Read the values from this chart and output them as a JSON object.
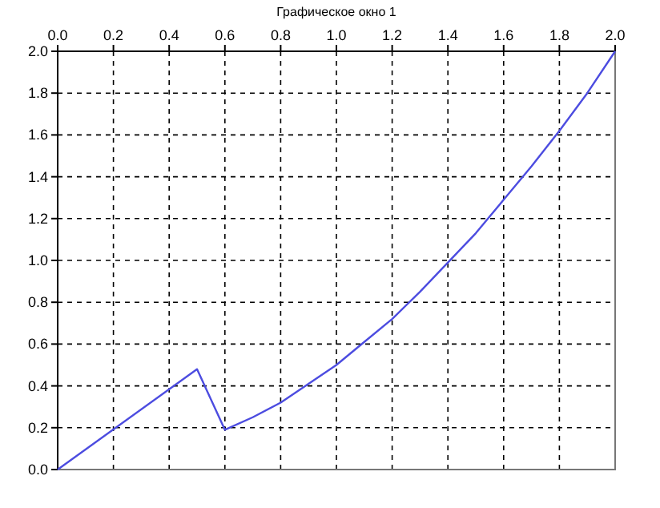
{
  "chart_data": {
    "type": "line",
    "title": "Графическое окно 1",
    "x": [
      0,
      0.5,
      0.6,
      0.7,
      0.8,
      0.9,
      1.0,
      1.1,
      1.2,
      1.3,
      1.4,
      1.5,
      1.6,
      1.7,
      1.8,
      1.9,
      2.0
    ],
    "series": [
      {
        "color": "#4c4ce0",
        "values": [
          0,
          0.48,
          0.19,
          0.25,
          0.32,
          0.41,
          0.5,
          0.61,
          0.72,
          0.85,
          0.99,
          1.13,
          1.29,
          1.45,
          1.62,
          1.8,
          2.0
        ]
      }
    ],
    "xlim": [
      0,
      2
    ],
    "ylim": [
      0,
      2
    ],
    "xticks": [
      {
        "value": 0,
        "label": "0.0"
      },
      {
        "value": 0.2,
        "label": "0.2"
      },
      {
        "value": 0.4,
        "label": "0.4"
      },
      {
        "value": 0.6,
        "label": "0.6"
      },
      {
        "value": 0.8,
        "label": "0.8"
      },
      {
        "value": 1,
        "label": "1.0"
      },
      {
        "value": 1.2,
        "label": "1.2"
      },
      {
        "value": 1.4,
        "label": "1.4"
      },
      {
        "value": 1.6,
        "label": "1.6"
      },
      {
        "value": 1.8,
        "label": "1.8"
      },
      {
        "value": 2,
        "label": "2.0"
      }
    ],
    "yticks": [
      {
        "value": 0,
        "label": "0.0"
      },
      {
        "value": 0.2,
        "label": "0.2"
      },
      {
        "value": 0.4,
        "label": "0.4"
      },
      {
        "value": 0.6,
        "label": "0.6"
      },
      {
        "value": 0.8,
        "label": "0.8"
      },
      {
        "value": 1,
        "label": "1.0"
      },
      {
        "value": 1.2,
        "label": "1.2"
      },
      {
        "value": 1.4,
        "label": "1.4"
      },
      {
        "value": 1.6,
        "label": "1.6"
      },
      {
        "value": 1.8,
        "label": "1.8"
      },
      {
        "value": 2,
        "label": "2.0"
      }
    ],
    "grid": true,
    "line_style": "solid",
    "marker": "none"
  }
}
